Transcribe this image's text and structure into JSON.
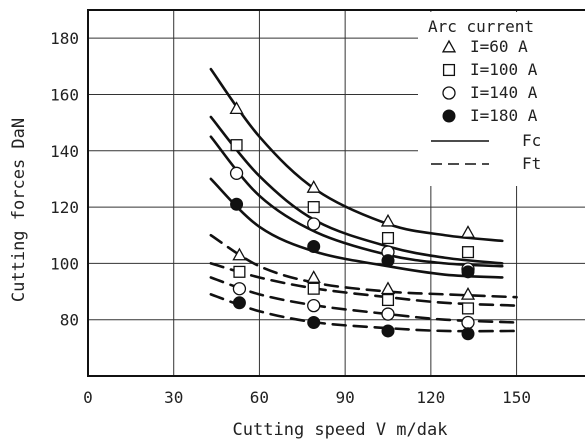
{
  "chart_data": {
    "type": "line",
    "title": "",
    "xlabel": "Cutting speed V m/dak",
    "ylabel": "Cutting forces DaN",
    "xlim": [
      0,
      175
    ],
    "ylim": [
      60,
      190
    ],
    "xticks": [
      0,
      30,
      60,
      90,
      120,
      150
    ],
    "yticks": [
      80,
      100,
      120,
      140,
      160,
      180
    ],
    "grid": true,
    "legend": {
      "title": "Arc current",
      "position": "top-right",
      "markers": [
        {
          "label": "I=60 A",
          "marker": "triangle-open"
        },
        {
          "label": "I=100 A",
          "marker": "square-open"
        },
        {
          "label": "I=140 A",
          "marker": "circle-open"
        },
        {
          "label": "I=180 A",
          "marker": "circle-filled"
        }
      ],
      "lines": [
        {
          "label": "Fc",
          "style": "solid"
        },
        {
          "label": "Ft",
          "style": "dashed"
        }
      ]
    },
    "series": [
      {
        "current": "I=60 A",
        "force": "Fc",
        "marker": "triangle-open",
        "x": [
          52,
          79,
          105,
          133
        ],
        "y": [
          155,
          127,
          115,
          111
        ],
        "curve_x": [
          43,
          60,
          80,
          105,
          125,
          145
        ],
        "curve_y": [
          169,
          145,
          126,
          114,
          110,
          108
        ]
      },
      {
        "current": "I=100 A",
        "force": "Fc",
        "marker": "square-open",
        "x": [
          52,
          79,
          105,
          133
        ],
        "y": [
          142,
          120,
          109,
          104
        ],
        "curve_x": [
          43,
          60,
          80,
          105,
          125,
          145
        ],
        "curve_y": [
          152,
          131,
          115,
          106,
          102,
          100
        ]
      },
      {
        "current": "I=140 A",
        "force": "Fc",
        "marker": "circle-open",
        "x": [
          52,
          79,
          105,
          133
        ],
        "y": [
          132,
          114,
          104,
          98
        ],
        "curve_x": [
          43,
          60,
          80,
          105,
          125,
          145
        ],
        "curve_y": [
          145,
          124,
          111,
          103,
          100,
          99
        ]
      },
      {
        "current": "I=180 A",
        "force": "Fc",
        "marker": "circle-filled",
        "x": [
          52,
          79,
          105,
          133
        ],
        "y": [
          121,
          106,
          101,
          97
        ],
        "curve_x": [
          43,
          60,
          80,
          105,
          125,
          145
        ],
        "curve_y": [
          130,
          113,
          104,
          99,
          96,
          95
        ]
      },
      {
        "current": "I=60 A",
        "force": "Ft",
        "marker": "triangle-open",
        "x": [
          53,
          79,
          105,
          133
        ],
        "y": [
          103,
          95,
          91,
          89
        ],
        "curve_x": [
          43,
          60,
          80,
          105,
          125,
          150
        ],
        "curve_y": [
          110,
          99,
          93,
          90,
          89,
          88
        ]
      },
      {
        "current": "I=100 A",
        "force": "Ft",
        "marker": "square-open",
        "x": [
          53,
          79,
          105,
          133
        ],
        "y": [
          97,
          91,
          87,
          84
        ],
        "curve_x": [
          43,
          60,
          80,
          105,
          125,
          150
        ],
        "curve_y": [
          100,
          95,
          91,
          88,
          86,
          85
        ]
      },
      {
        "current": "I=140 A",
        "force": "Ft",
        "marker": "circle-open",
        "x": [
          53,
          79,
          105,
          133
        ],
        "y": [
          91,
          85,
          82,
          79
        ],
        "curve_x": [
          43,
          60,
          80,
          105,
          125,
          150
        ],
        "curve_y": [
          95,
          89,
          85,
          82,
          80,
          79
        ]
      },
      {
        "current": "I=180 A",
        "force": "Ft",
        "marker": "circle-filled",
        "x": [
          53,
          79,
          105,
          133
        ],
        "y": [
          86,
          79,
          76,
          75
        ],
        "curve_x": [
          43,
          60,
          80,
          105,
          125,
          150
        ],
        "curve_y": [
          89,
          83,
          79,
          77,
          76,
          76
        ]
      }
    ]
  }
}
